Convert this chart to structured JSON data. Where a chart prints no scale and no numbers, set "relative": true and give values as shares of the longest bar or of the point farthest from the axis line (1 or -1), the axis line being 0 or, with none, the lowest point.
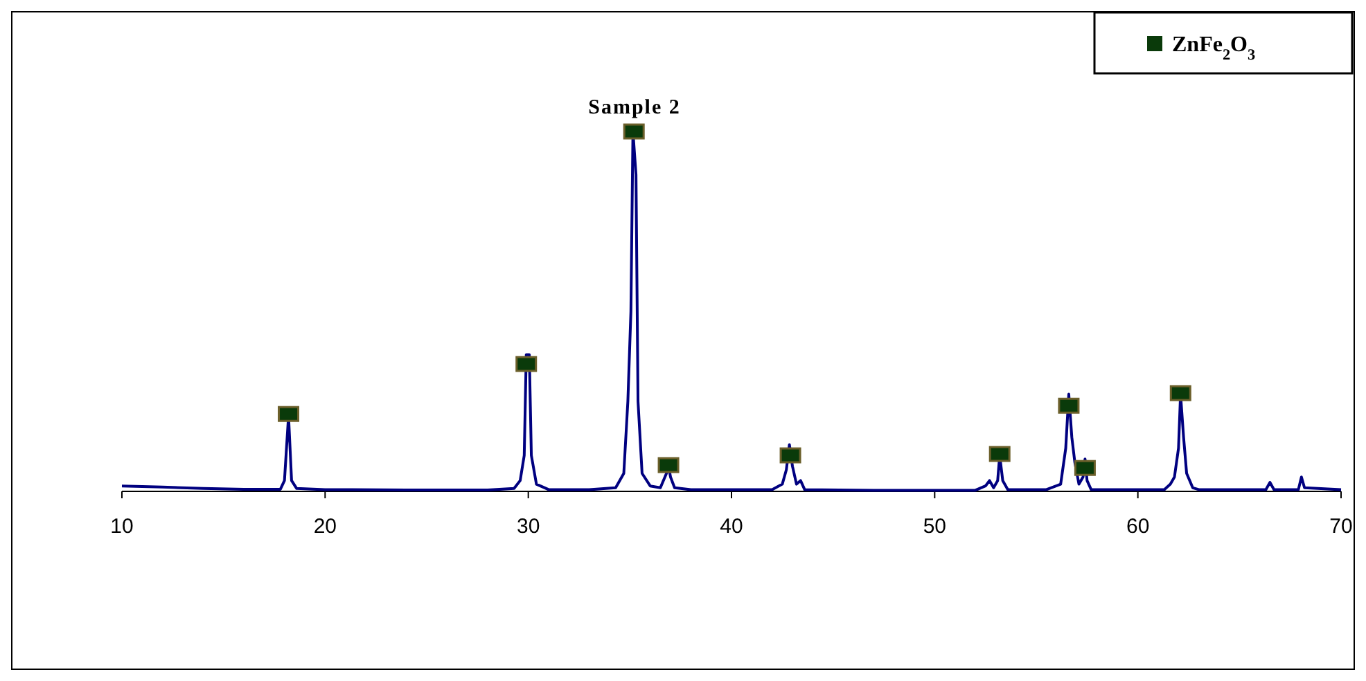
{
  "chart_data": {
    "type": "line",
    "title": "Sample 2",
    "relative": true,
    "xlim": [
      10,
      70
    ],
    "xticks": [
      10,
      20,
      30,
      40,
      50,
      60,
      70
    ],
    "grid": false,
    "legend": "top right",
    "series": [
      {
        "color": "#000080",
        "marker": "none",
        "x": [
          10,
          12,
          14,
          16,
          17.8,
          18.0,
          18.2,
          18.35,
          18.6,
          20,
          24,
          28,
          29.3,
          29.6,
          29.8,
          29.9,
          30.05,
          30.15,
          30.4,
          31,
          33,
          34.3,
          34.7,
          34.9,
          35.05,
          35.15,
          35.3,
          35.4,
          35.6,
          36,
          36.5,
          36.8,
          36.9,
          37.0,
          37.2,
          38,
          42,
          42.5,
          42.7,
          42.85,
          43.0,
          43.2,
          43.4,
          43.6,
          47,
          52,
          52.5,
          52.7,
          52.9,
          53.1,
          53.2,
          53.35,
          53.6,
          55.5,
          56.2,
          56.45,
          56.6,
          56.75,
          56.9,
          57.1,
          57.3,
          57.4,
          57.5,
          57.7,
          61.3,
          61.6,
          61.8,
          62.0,
          62.1,
          62.25,
          62.4,
          62.7,
          63,
          66.3,
          66.5,
          66.7,
          67.9,
          68.05,
          68.2,
          70
        ],
        "values": [
          0.015,
          0.012,
          0.008,
          0.006,
          0.006,
          0.03,
          0.21,
          0.03,
          0.008,
          0.005,
          0.004,
          0.004,
          0.008,
          0.03,
          0.1,
          0.38,
          0.38,
          0.1,
          0.02,
          0.005,
          0.005,
          0.01,
          0.05,
          0.25,
          0.5,
          1.0,
          0.88,
          0.25,
          0.05,
          0.015,
          0.01,
          0.05,
          0.07,
          0.04,
          0.01,
          0.005,
          0.005,
          0.02,
          0.06,
          0.13,
          0.07,
          0.02,
          0.03,
          0.005,
          0.003,
          0.003,
          0.015,
          0.03,
          0.01,
          0.03,
          0.1,
          0.03,
          0.005,
          0.005,
          0.02,
          0.12,
          0.27,
          0.15,
          0.08,
          0.02,
          0.04,
          0.09,
          0.03,
          0.005,
          0.005,
          0.02,
          0.04,
          0.12,
          0.27,
          0.15,
          0.05,
          0.01,
          0.005,
          0.005,
          0.025,
          0.005,
          0.005,
          0.04,
          0.01,
          0.005
        ]
      },
      {
        "type": "scatter",
        "name": "ZnFe$_{2}$O$_{3}$",
        "color": "#0a3a0a",
        "marker": "square",
        "x": [
          18.2,
          29.9,
          35.2,
          36.9,
          42.9,
          53.2,
          56.6,
          57.4,
          62.1
        ],
        "values": [
          0.215,
          0.354,
          1.0,
          0.073,
          0.1,
          0.104,
          0.238,
          0.065,
          0.273
        ]
      }
    ]
  }
}
